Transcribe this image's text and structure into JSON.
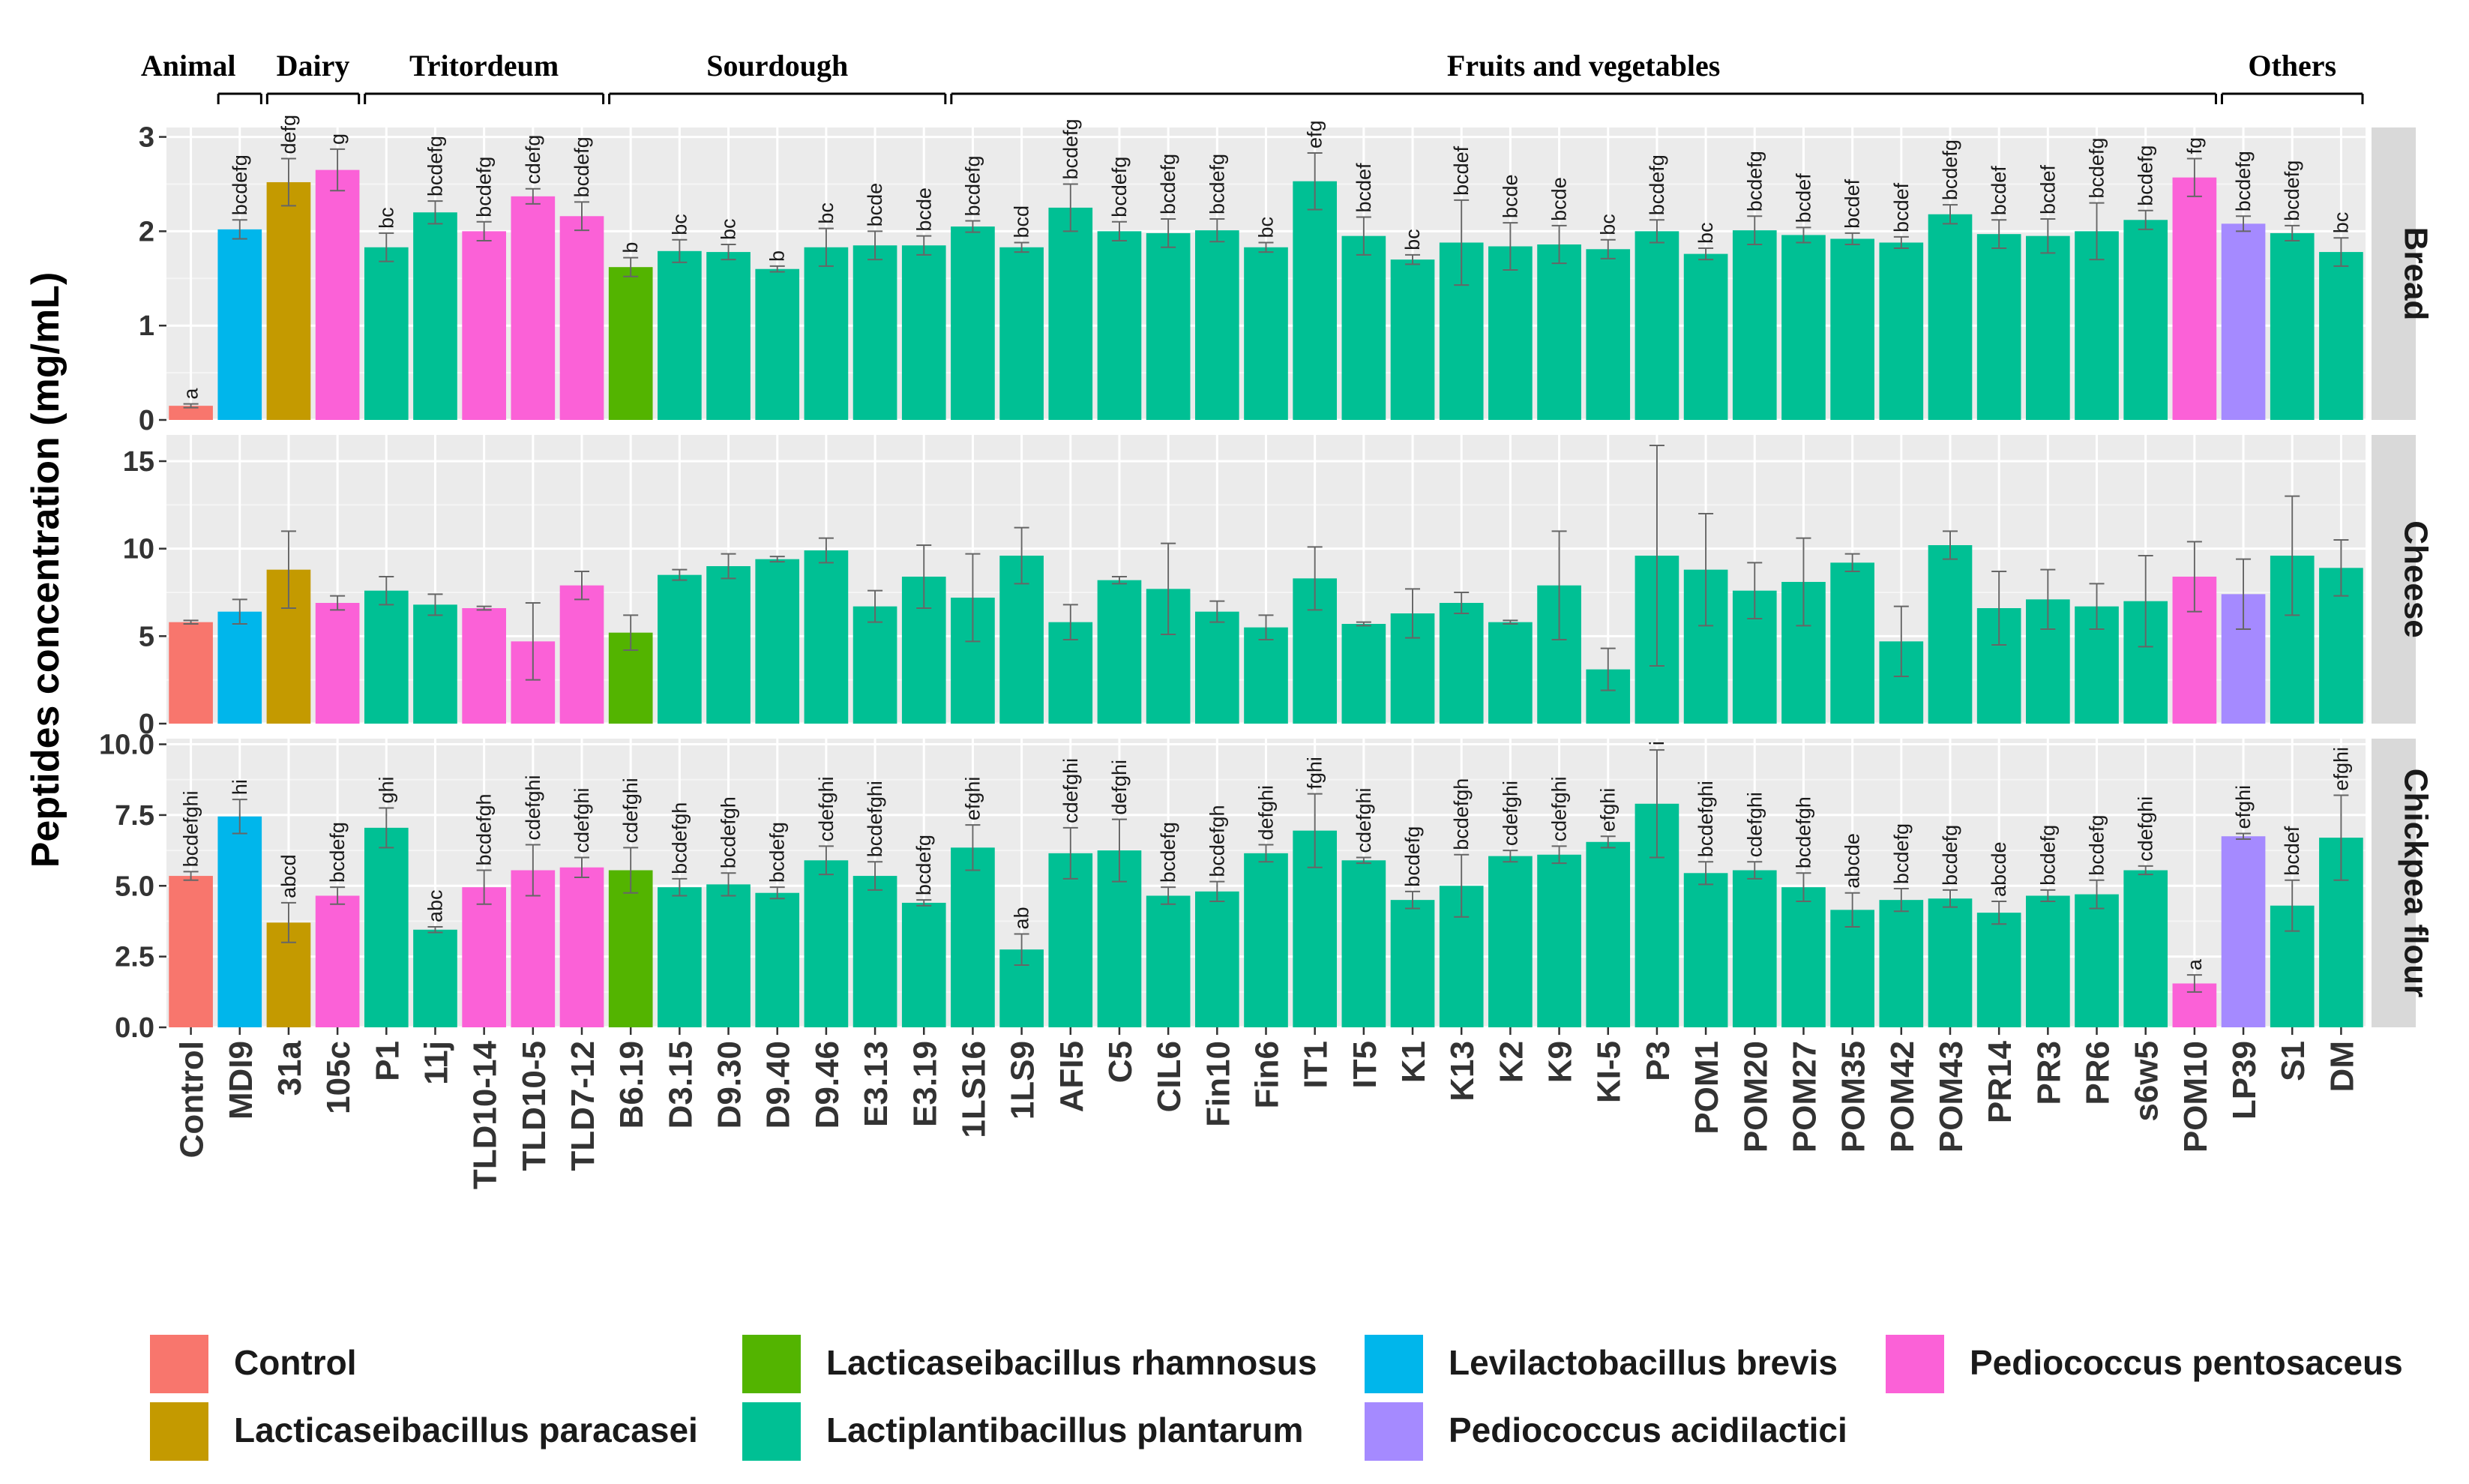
{
  "chart_data": {
    "type": "bar",
    "ylabel": "Peptides concentration (mg/mL)",
    "categories": [
      "Control",
      "MDI9",
      "31a",
      "105c",
      "P1",
      "11j",
      "TLD10-14",
      "TLD10-5",
      "TLD7-12",
      "B6.19",
      "D3.15",
      "D9.30",
      "D9.40",
      "D9.46",
      "E3.13",
      "E3.19",
      "1LS16",
      "1LS9",
      "AFI5",
      "C5",
      "CIL6",
      "Fin10",
      "Fin6",
      "IT1",
      "IT5",
      "K1",
      "K13",
      "K2",
      "K9",
      "KI-5",
      "P3",
      "POM1",
      "POM20",
      "POM27",
      "POM35",
      "POM42",
      "POM43",
      "PR14",
      "PR3",
      "PR6",
      "s6w5",
      "POM10",
      "LP39",
      "S1",
      "DM"
    ],
    "species": [
      "Control",
      "Levilactobacillus brevis",
      "Lacticaseibacillus paracasei",
      "Pediococcus pentosaceus",
      "Lactiplantibacillus plantarum",
      "Lactiplantibacillus plantarum",
      "Pediococcus pentosaceus",
      "Pediococcus pentosaceus",
      "Pediococcus pentosaceus",
      "Lacticaseibacillus rhamnosus",
      "Lactiplantibacillus plantarum",
      "Lactiplantibacillus plantarum",
      "Lactiplantibacillus plantarum",
      "Lactiplantibacillus plantarum",
      "Lactiplantibacillus plantarum",
      "Lactiplantibacillus plantarum",
      "Lactiplantibacillus plantarum",
      "Lactiplantibacillus plantarum",
      "Lactiplantibacillus plantarum",
      "Lactiplantibacillus plantarum",
      "Lactiplantibacillus plantarum",
      "Lactiplantibacillus plantarum",
      "Lactiplantibacillus plantarum",
      "Lactiplantibacillus plantarum",
      "Lactiplantibacillus plantarum",
      "Lactiplantibacillus plantarum",
      "Lactiplantibacillus plantarum",
      "Lactiplantibacillus plantarum",
      "Lactiplantibacillus plantarum",
      "Lactiplantibacillus plantarum",
      "Lactiplantibacillus plantarum",
      "Lactiplantibacillus plantarum",
      "Lactiplantibacillus plantarum",
      "Lactiplantibacillus plantarum",
      "Lactiplantibacillus plantarum",
      "Lactiplantibacillus plantarum",
      "Lactiplantibacillus plantarum",
      "Lactiplantibacillus plantarum",
      "Lactiplantibacillus plantarum",
      "Lactiplantibacillus plantarum",
      "Lactiplantibacillus plantarum",
      "Pediococcus pentosaceus",
      "Pediococcus acidilactici",
      "Lactiplantibacillus plantarum",
      "Lactiplantibacillus plantarum"
    ],
    "groups": [
      {
        "label": "Animal",
        "from": 1,
        "to": 1
      },
      {
        "label": "Dairy",
        "from": 2,
        "to": 3
      },
      {
        "label": "Tritordeum",
        "from": 4,
        "to": 8
      },
      {
        "label": "Sourdough",
        "from": 9,
        "to": 15
      },
      {
        "label": "Fruits and vegetables",
        "from": 16,
        "to": 41
      },
      {
        "label": "Others",
        "from": 42,
        "to": 44
      }
    ],
    "panels": [
      {
        "name": "Bread",
        "ylim": [
          0,
          3.1
        ],
        "ticks": [
          0,
          1,
          2,
          3
        ],
        "tick_labels": [
          "0",
          "1",
          "2",
          "3"
        ],
        "values": [
          0.15,
          2.02,
          2.52,
          2.65,
          1.83,
          2.2,
          2.0,
          2.37,
          2.16,
          1.62,
          1.79,
          1.78,
          1.6,
          1.83,
          1.85,
          1.85,
          2.05,
          1.83,
          2.25,
          2.0,
          1.98,
          2.01,
          1.83,
          2.53,
          1.95,
          1.7,
          1.88,
          1.84,
          1.86,
          1.81,
          2.0,
          1.76,
          2.01,
          1.96,
          1.92,
          1.88,
          2.18,
          1.97,
          1.95,
          2.0,
          2.12,
          2.57,
          2.08,
          1.98,
          1.78
        ],
        "errors": [
          0.02,
          0.1,
          0.25,
          0.22,
          0.15,
          0.12,
          0.1,
          0.08,
          0.15,
          0.1,
          0.12,
          0.08,
          0.03,
          0.2,
          0.15,
          0.1,
          0.06,
          0.05,
          0.25,
          0.1,
          0.15,
          0.12,
          0.05,
          0.3,
          0.2,
          0.05,
          0.45,
          0.25,
          0.2,
          0.1,
          0.12,
          0.06,
          0.15,
          0.08,
          0.06,
          0.06,
          0.1,
          0.15,
          0.18,
          0.3,
          0.1,
          0.2,
          0.08,
          0.08,
          0.15
        ],
        "letters": [
          "a",
          "bcdefg",
          "defg",
          "g",
          "bc",
          "bcdefg",
          "bcdefg",
          "cdefg",
          "bcdefg",
          "b",
          "bc",
          "bc",
          "b",
          "bc",
          "bcde",
          "bcde",
          "bcdefg",
          "bcd",
          "bcdefg",
          "bcdefg",
          "bcdefg",
          "bcdefg",
          "bc",
          "efg",
          "bcdef",
          "bc",
          "bcdef",
          "bcde",
          "bcde",
          "bc",
          "bcdefg",
          "bc",
          "bcdefg",
          "bcdef",
          "bcdef",
          "bcdef",
          "bcdefg",
          "bcdef",
          "bcdef",
          "bcdefg",
          "bcdefg",
          "fg",
          "bcdefg",
          "bcdefg",
          "bc"
        ]
      },
      {
        "name": "Cheese",
        "ylim": [
          0,
          16.5
        ],
        "ticks": [
          0,
          5,
          10,
          15
        ],
        "tick_labels": [
          "0",
          "5",
          "10",
          "15"
        ],
        "values": [
          5.8,
          6.4,
          8.8,
          6.9,
          7.6,
          6.8,
          6.6,
          4.7,
          7.9,
          5.2,
          8.5,
          9.0,
          9.4,
          9.9,
          6.7,
          8.4,
          7.2,
          9.6,
          5.8,
          8.2,
          7.7,
          6.4,
          5.5,
          8.3,
          5.7,
          6.3,
          6.9,
          5.8,
          7.9,
          3.1,
          9.6,
          8.8,
          7.6,
          8.1,
          9.2,
          4.7,
          10.2,
          6.6,
          7.1,
          6.7,
          7.0,
          8.4,
          7.4,
          9.6,
          8.9
        ],
        "errors": [
          0.1,
          0.7,
          2.2,
          0.4,
          0.8,
          0.6,
          0.1,
          2.2,
          0.8,
          1.0,
          0.3,
          0.7,
          0.15,
          0.7,
          0.9,
          1.8,
          2.5,
          1.6,
          1.0,
          0.2,
          2.6,
          0.6,
          0.7,
          1.8,
          0.1,
          1.4,
          0.6,
          0.1,
          3.1,
          1.2,
          6.3,
          3.2,
          1.6,
          2.5,
          0.5,
          2.0,
          0.8,
          2.1,
          1.7,
          1.3,
          2.6,
          2.0,
          2.0,
          3.4,
          1.6
        ]
      },
      {
        "name": "Chickpea flour",
        "ylim": [
          0,
          10.2
        ],
        "ticks": [
          0,
          2.5,
          5,
          7.5,
          10
        ],
        "tick_labels": [
          "0.0",
          "2.5",
          "5.0",
          "7.5",
          "10.0"
        ],
        "values": [
          5.35,
          7.45,
          3.7,
          4.65,
          7.05,
          3.45,
          4.95,
          5.55,
          5.65,
          5.55,
          4.95,
          5.05,
          4.75,
          5.9,
          5.35,
          4.4,
          6.35,
          2.75,
          6.15,
          6.25,
          4.65,
          4.8,
          6.15,
          6.95,
          5.9,
          4.5,
          5.0,
          6.05,
          6.1,
          6.55,
          7.9,
          5.45,
          5.55,
          4.95,
          4.15,
          4.5,
          4.55,
          4.05,
          4.65,
          4.7,
          5.55,
          1.55,
          6.75,
          4.3,
          6.7
        ],
        "errors": [
          0.15,
          0.6,
          0.7,
          0.3,
          0.7,
          0.1,
          0.6,
          0.9,
          0.35,
          0.8,
          0.3,
          0.4,
          0.2,
          0.5,
          0.5,
          0.1,
          0.8,
          0.55,
          0.9,
          1.1,
          0.3,
          0.35,
          0.3,
          1.3,
          0.1,
          0.3,
          1.1,
          0.2,
          0.3,
          0.2,
          1.9,
          0.4,
          0.3,
          0.5,
          0.6,
          0.4,
          0.3,
          0.4,
          0.2,
          0.5,
          0.15,
          0.3,
          0.1,
          0.9,
          1.5
        ],
        "letters": [
          "bcdefghi",
          "hi",
          "abcd",
          "bcdefg",
          "ghi",
          "abc",
          "bcdefgh",
          "cdefghi",
          "cdefghi",
          "cdefghi",
          "bcdefgh",
          "bcdefgh",
          "bcdefg",
          "cdefghi",
          "bcdefghi",
          "bcdefg",
          "efghi",
          "ab",
          "cdefghi",
          "defghi",
          "bcdefg",
          "bcdefgh",
          "defghi",
          "fghi",
          "cdefghi",
          "bcdefg",
          "bcdefgh",
          "cdefghi",
          "cdefghi",
          "efghi",
          "i",
          "bcdefghi",
          "cdefghi",
          "bcdefgh",
          "abcde",
          "bcdefg",
          "bcdefg",
          "abcde",
          "bcdefg",
          "bcdefg",
          "cdefghi",
          "a",
          "efghi",
          "bcdef",
          "efghi"
        ]
      }
    ],
    "legend": [
      {
        "label": "Control",
        "color": "#F8766D"
      },
      {
        "label": "Lacticaseibacillus paracasei",
        "color": "#C49A00"
      },
      {
        "label": "Lacticaseibacillus rhamnosus",
        "color": "#53B400"
      },
      {
        "label": "Lactiplantibacillus plantarum",
        "color": "#00C094"
      },
      {
        "label": "Levilactobacillus  brevis",
        "color": "#00B6EB"
      },
      {
        "label": "Pediococcus acidilactici",
        "color": "#A58AFF"
      },
      {
        "label": "Pediococcus pentosaceus",
        "color": "#FB61D7"
      }
    ],
    "legend_position": "bottom"
  }
}
